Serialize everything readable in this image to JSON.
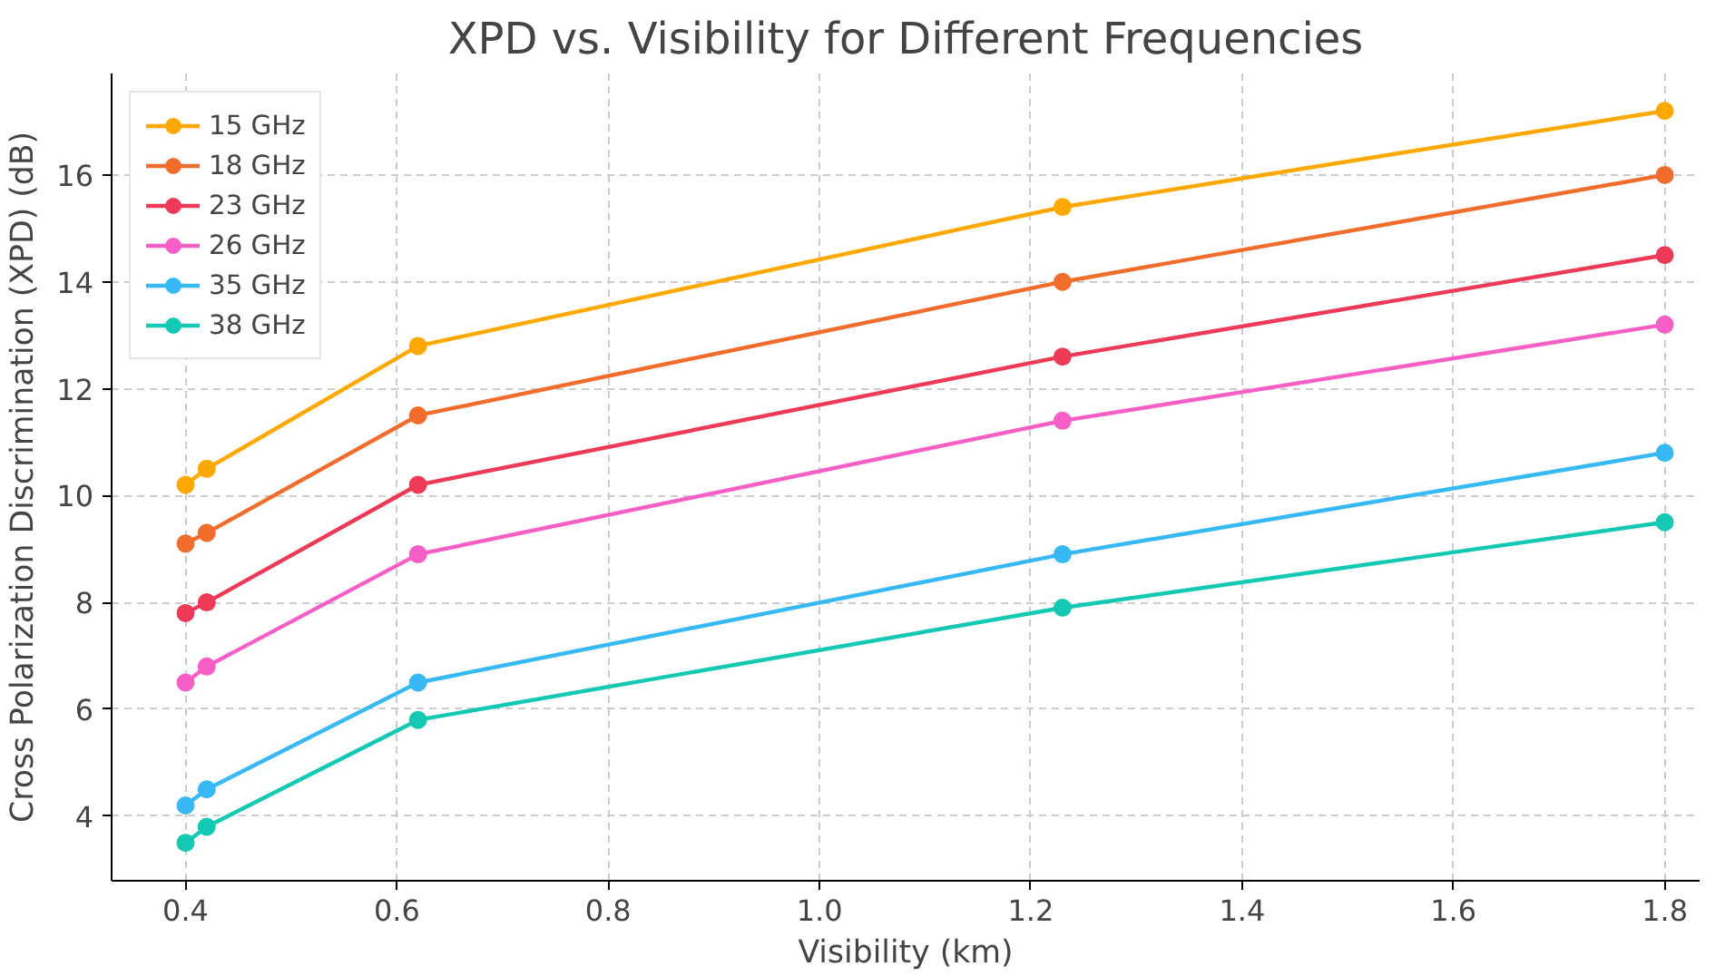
{
  "chart_data": {
    "type": "line",
    "title": "XPD vs. Visibility for Different Frequencies",
    "xlabel": "Visibility (km)",
    "ylabel": "Cross Polarization Discrimination (XPD) (dB)",
    "x": [
      0.4,
      0.42,
      0.62,
      1.23,
      1.8
    ],
    "series": [
      {
        "name": "15 GHz",
        "color": "#ffa800",
        "values": [
          10.2,
          10.5,
          12.8,
          15.4,
          17.2
        ]
      },
      {
        "name": "18 GHz",
        "color": "#f26d2c",
        "values": [
          9.1,
          9.3,
          11.5,
          14.0,
          16.0
        ]
      },
      {
        "name": "23 GHz",
        "color": "#ee3a57",
        "values": [
          7.8,
          8.0,
          10.2,
          12.6,
          14.5
        ]
      },
      {
        "name": "26 GHz",
        "color": "#f75ec6",
        "values": [
          6.5,
          6.8,
          8.9,
          11.4,
          13.2
        ]
      },
      {
        "name": "35 GHz",
        "color": "#36b9f5",
        "values": [
          4.2,
          4.5,
          6.5,
          8.9,
          10.8
        ]
      },
      {
        "name": "38 GHz",
        "color": "#14c9b3",
        "values": [
          3.5,
          3.8,
          5.8,
          7.9,
          9.5
        ]
      }
    ],
    "xlim": [
      0.33,
      1.833
    ],
    "ylim": [
      2.79,
      17.9
    ],
    "xticks": [
      0.4,
      0.6,
      0.8,
      {
        "value": 1,
        "label": "1.0"
      },
      1.2,
      1.4,
      1.6,
      1.8
    ],
    "yticks": [
      4,
      6,
      8,
      10,
      12,
      14,
      16
    ],
    "grid": true,
    "legend": "top left",
    "marker": "circle",
    "line_style": "solid"
  }
}
